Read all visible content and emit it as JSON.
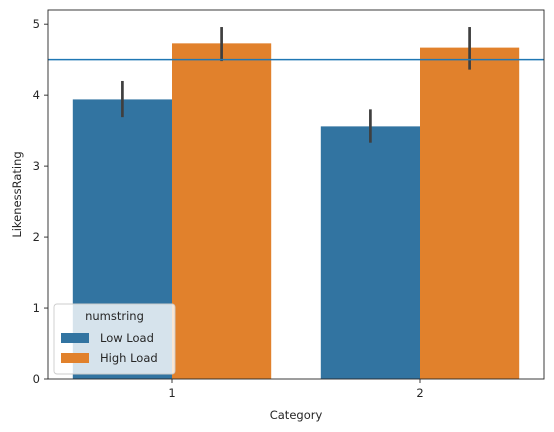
{
  "chart_data": {
    "type": "bar",
    "xlabel": "Category",
    "ylabel": "LikenessRating",
    "categories": [
      "1",
      "2"
    ],
    "ylim": [
      0,
      5.2
    ],
    "yticks": [
      0,
      1,
      2,
      3,
      4,
      5
    ],
    "series": [
      {
        "name": "Low Load",
        "color": "#3274a1",
        "values": [
          3.94,
          3.56
        ],
        "ci_low": [
          3.69,
          3.33
        ],
        "ci_high": [
          4.2,
          3.8
        ]
      },
      {
        "name": "High Load",
        "color": "#e1812c",
        "values": [
          4.73,
          4.67
        ],
        "ci_low": [
          4.48,
          4.36
        ],
        "ci_high": [
          4.96,
          4.96
        ]
      }
    ],
    "reference_line": {
      "y": 4.5,
      "color": "#1f77b4"
    },
    "errorbar_color": "#3f3f3f",
    "legend": {
      "title": "numstring",
      "position": "lower-left",
      "entries": [
        "Low Load",
        "High Load"
      ]
    },
    "grid": false
  }
}
